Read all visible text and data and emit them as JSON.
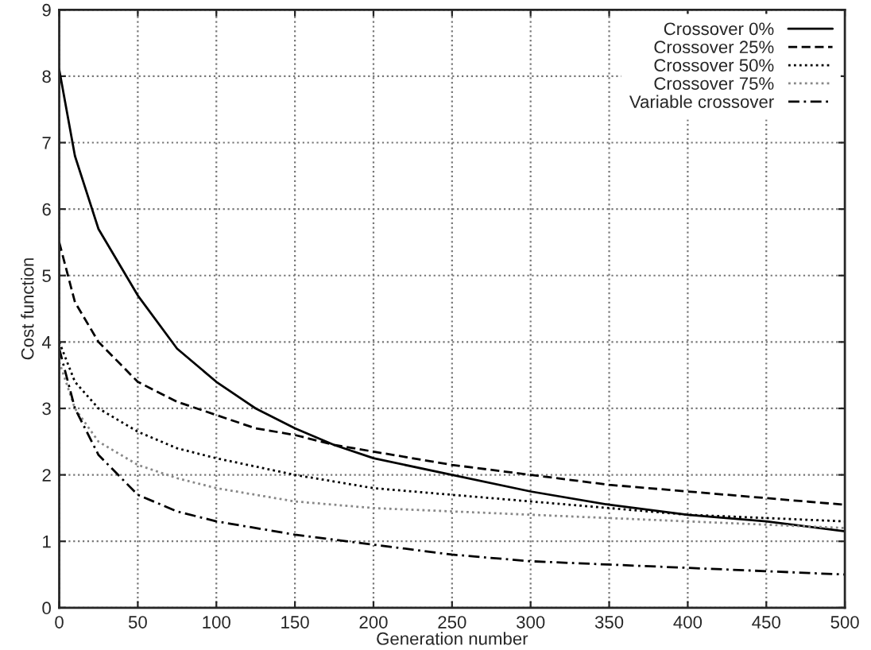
{
  "chart_data": {
    "type": "line",
    "xlabel": "Generation number",
    "ylabel": "Cost function",
    "xlim": [
      0,
      500
    ],
    "ylim": [
      0,
      9
    ],
    "xticks": [
      0,
      50,
      100,
      150,
      200,
      250,
      300,
      350,
      400,
      450,
      500
    ],
    "yticks": [
      0,
      1,
      2,
      3,
      4,
      5,
      6,
      7,
      8,
      9
    ],
    "grid": true,
    "legend": "top right",
    "series": [
      {
        "name": "Crossover 0%",
        "color": "#000000",
        "line_style": "solid",
        "x": [
          0,
          10,
          25,
          50,
          75,
          100,
          125,
          150,
          175,
          200,
          250,
          300,
          350,
          400,
          450,
          500
        ],
        "values": [
          8.1,
          6.8,
          5.7,
          4.7,
          3.9,
          3.4,
          3.0,
          2.7,
          2.45,
          2.25,
          2.0,
          1.75,
          1.55,
          1.4,
          1.3,
          1.15
        ]
      },
      {
        "name": "Crossover 25%",
        "color": "#000000",
        "line_style": "dashed",
        "x": [
          0,
          10,
          25,
          50,
          75,
          100,
          125,
          150,
          175,
          200,
          250,
          300,
          350,
          400,
          450,
          500
        ],
        "values": [
          5.5,
          4.6,
          4.0,
          3.4,
          3.1,
          2.9,
          2.7,
          2.6,
          2.45,
          2.35,
          2.15,
          2.0,
          1.85,
          1.75,
          1.65,
          1.55
        ]
      },
      {
        "name": "Crossover 50%",
        "color": "#000000",
        "line_style": "dotted",
        "x": [
          0,
          10,
          25,
          50,
          75,
          100,
          150,
          200,
          250,
          300,
          350,
          400,
          450,
          500
        ],
        "values": [
          4.0,
          3.4,
          3.0,
          2.65,
          2.4,
          2.25,
          2.0,
          1.8,
          1.7,
          1.6,
          1.5,
          1.4,
          1.35,
          1.3
        ]
      },
      {
        "name": "Crossover 75%",
        "color": "#888888",
        "line_style": "dotted",
        "x": [
          0,
          10,
          25,
          50,
          75,
          100,
          150,
          200,
          250,
          300,
          350,
          400,
          450,
          500
        ],
        "values": [
          3.7,
          3.0,
          2.5,
          2.15,
          1.95,
          1.8,
          1.6,
          1.5,
          1.45,
          1.4,
          1.35,
          1.3,
          1.25,
          1.2
        ]
      },
      {
        "name": "Variable crossover",
        "color": "#000000",
        "line_style": "dashdot",
        "x": [
          0,
          10,
          25,
          50,
          75,
          100,
          150,
          200,
          250,
          300,
          350,
          400,
          450,
          500
        ],
        "values": [
          3.9,
          3.0,
          2.3,
          1.7,
          1.45,
          1.3,
          1.1,
          0.95,
          0.8,
          0.7,
          0.65,
          0.6,
          0.55,
          0.5
        ]
      }
    ]
  }
}
